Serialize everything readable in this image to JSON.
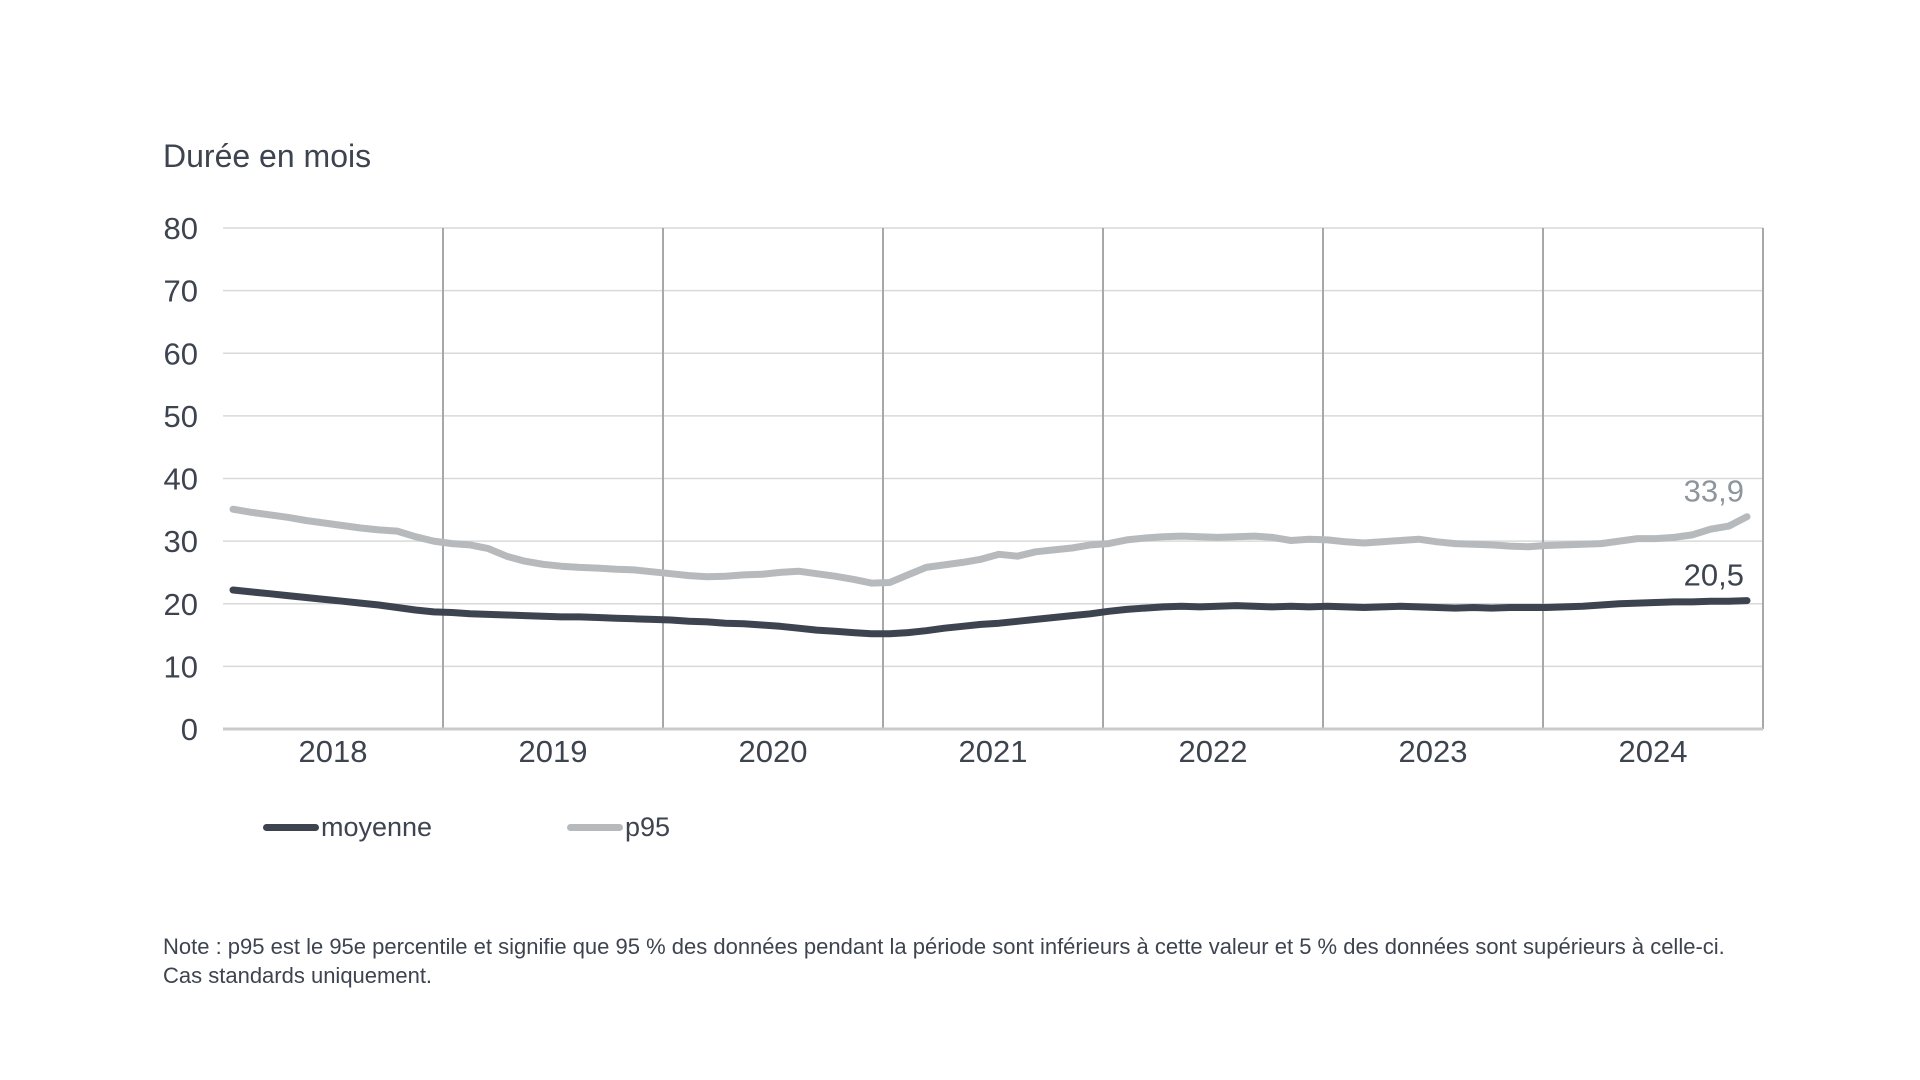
{
  "chart_data": {
    "type": "line",
    "title": "Durée en mois",
    "ylim": [
      0,
      80
    ],
    "yticks": [
      0,
      10,
      20,
      30,
      40,
      50,
      60,
      70,
      80
    ],
    "x_years": [
      "2018",
      "2019",
      "2020",
      "2021",
      "2022",
      "2023",
      "2024"
    ],
    "grid": true,
    "legend_position": "bottom-left",
    "colors": {
      "text": "#3d4450",
      "horizontal_grid": "#d8d9da",
      "vertical_grid": "#a6a8aa",
      "axis_line": "#c9cacc"
    },
    "series": [
      {
        "name": "moyenne",
        "color": "#3d4450",
        "end_label": "20,5",
        "end_label_color": "#3d4450",
        "values": [
          22.2,
          21.9,
          21.6,
          21.3,
          21.0,
          20.7,
          20.4,
          20.1,
          19.8,
          19.4,
          19.0,
          18.7,
          18.6,
          18.4,
          18.3,
          18.2,
          18.1,
          18.0,
          17.9,
          17.9,
          17.8,
          17.7,
          17.6,
          17.5,
          17.4,
          17.2,
          17.1,
          16.9,
          16.8,
          16.6,
          16.4,
          16.1,
          15.8,
          15.6,
          15.4,
          15.2,
          15.2,
          15.4,
          15.7,
          16.1,
          16.4,
          16.7,
          16.9,
          17.2,
          17.5,
          17.8,
          18.1,
          18.4,
          18.8,
          19.1,
          19.3,
          19.5,
          19.6,
          19.5,
          19.6,
          19.7,
          19.6,
          19.5,
          19.6,
          19.5,
          19.6,
          19.5,
          19.4,
          19.5,
          19.6,
          19.5,
          19.4,
          19.3,
          19.4,
          19.3,
          19.4,
          19.4,
          19.4,
          19.5,
          19.6,
          19.8,
          20.0,
          20.1,
          20.2,
          20.3,
          20.3,
          20.4,
          20.4,
          20.5
        ]
      },
      {
        "name": "p95",
        "color": "#b7babd",
        "end_label": "33,9",
        "end_label_color": "#8f959d",
        "values": [
          35.1,
          34.6,
          34.2,
          33.8,
          33.3,
          32.9,
          32.5,
          32.1,
          31.8,
          31.6,
          30.7,
          30.0,
          29.6,
          29.4,
          28.8,
          27.6,
          26.8,
          26.3,
          26.0,
          25.8,
          25.7,
          25.5,
          25.4,
          25.1,
          24.8,
          24.5,
          24.3,
          24.4,
          24.6,
          24.7,
          25.0,
          25.2,
          24.8,
          24.4,
          23.9,
          23.3,
          23.4,
          24.6,
          25.8,
          26.2,
          26.6,
          27.1,
          27.9,
          27.6,
          28.3,
          28.6,
          28.9,
          29.4,
          29.6,
          30.2,
          30.5,
          30.7,
          30.8,
          30.7,
          30.6,
          30.7,
          30.8,
          30.6,
          30.1,
          30.3,
          30.2,
          29.9,
          29.7,
          29.9,
          30.1,
          30.3,
          29.9,
          29.6,
          29.5,
          29.4,
          29.2,
          29.1,
          29.3,
          29.4,
          29.5,
          29.6,
          30.0,
          30.4,
          30.4,
          30.6,
          31.0,
          31.9,
          32.4,
          33.9
        ]
      }
    ]
  },
  "note": {
    "line1": "Note : p95 est le 95e percentile et signifie que 95 % des données pendant la période sont inférieurs à cette valeur et 5 % des données sont supérieurs à celle-ci.",
    "line2": "Cas standards uniquement."
  }
}
